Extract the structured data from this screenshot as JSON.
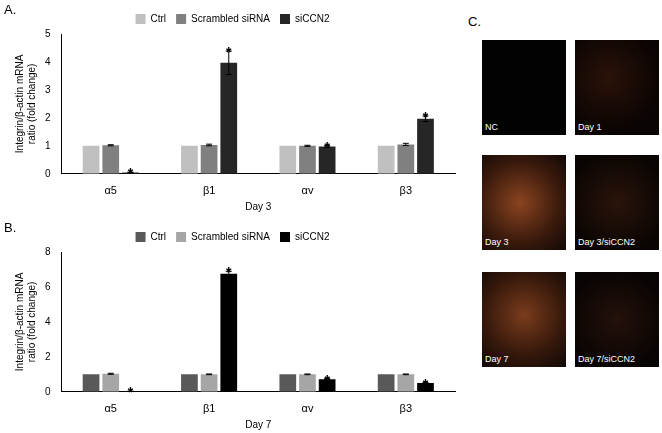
{
  "chart_data": [
    {
      "type": "bar",
      "annotation": "A.",
      "categories": [
        "α5",
        "β1",
        "αv",
        "β3"
      ],
      "x_label": "Day 3",
      "y_label": [
        "Integrin/β-actin mRNA",
        "ratio (fold change)"
      ],
      "ylim": [
        0,
        5
      ],
      "yticks": [
        0,
        1,
        2,
        3,
        4,
        5
      ],
      "grid": false,
      "legend": "top",
      "series": [
        {
          "name": "Ctrl",
          "color": "#c0c0c0",
          "values": [
            1,
            1,
            1,
            1
          ],
          "errors": [
            0,
            0,
            0,
            0
          ]
        },
        {
          "name": "Scrambled siRNA",
          "color": "#808080",
          "values": [
            1.02,
            1.03,
            1.0,
            1.05
          ],
          "errors": [
            0.02,
            0.03,
            0.02,
            0.04
          ]
        },
        {
          "name": "siCCN2",
          "color": "#262626",
          "values": [
            0.05,
            3.97,
            0.98,
            1.97
          ],
          "errors": [
            0.01,
            0.42,
            0.03,
            0.1
          ],
          "annotations": [
            "*",
            "*",
            "*",
            "*"
          ]
        }
      ]
    },
    {
      "type": "bar",
      "annotation": "B.",
      "categories": [
        "α5",
        "β1",
        "αv",
        "β3"
      ],
      "x_label": "Day 7",
      "y_label": [
        "Integrin/β-actin mRNA",
        "ratio (fold change)"
      ],
      "ylim": [
        0,
        8
      ],
      "yticks": [
        0,
        2,
        4,
        6,
        8
      ],
      "grid": false,
      "legend": "top",
      "series": [
        {
          "name": "Ctrl",
          "color": "#595959",
          "values": [
            1,
            1,
            1,
            1
          ],
          "errors": [
            0,
            0,
            0,
            0
          ]
        },
        {
          "name": "Scrambled siRNA",
          "color": "#a6a6a6",
          "values": [
            1.03,
            1.0,
            1.0,
            1.0
          ],
          "errors": [
            0.03,
            0.02,
            0.02,
            0.02
          ]
        },
        {
          "name": "siCCN2",
          "color": "#000000",
          "values": [
            0.03,
            6.75,
            0.72,
            0.5
          ],
          "errors": [
            0.01,
            0.15,
            0.04,
            0.03
          ],
          "annotations": [
            "*",
            "*",
            "*",
            "*"
          ]
        }
      ]
    }
  ],
  "image_panel": {
    "annotation": "C.",
    "images": [
      "NC",
      "Day 1",
      "Day 3",
      "Day 3/siCCN2",
      "Day 7",
      "Day 7/siCCN2"
    ]
  }
}
